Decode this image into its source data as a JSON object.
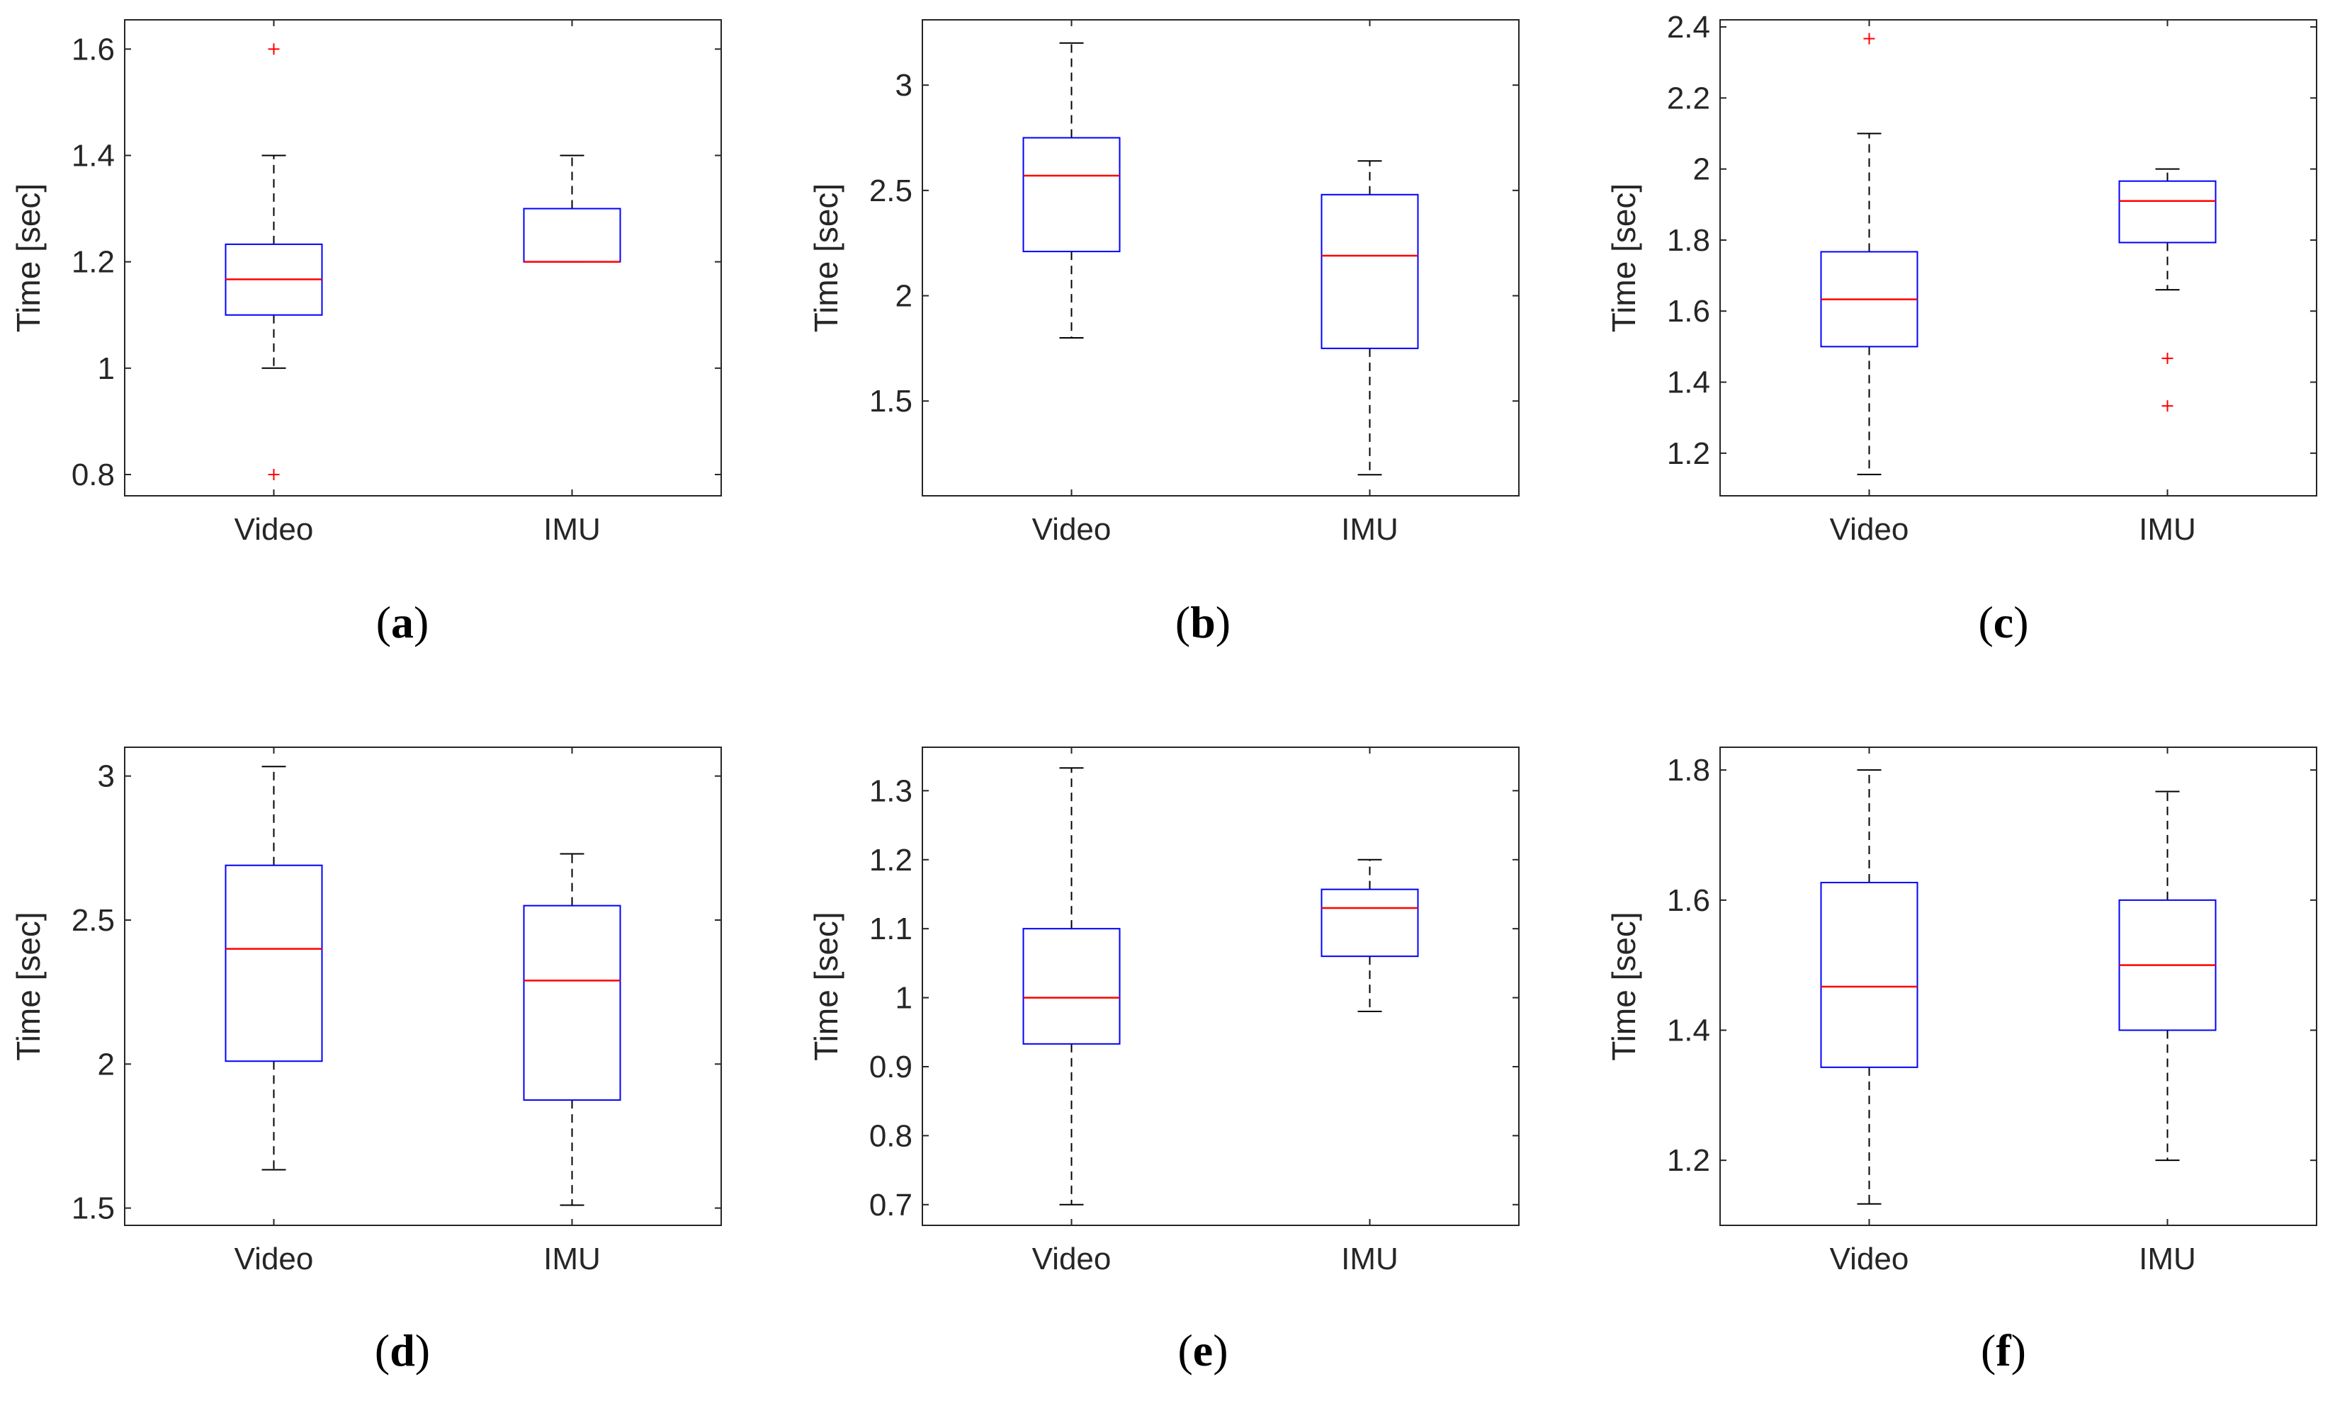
{
  "chart_data": [
    {
      "type": "box",
      "panel_label": "(a)",
      "label_open": "(",
      "label_letter": "a",
      "label_close": ")",
      "ylabel": "Time [sec]",
      "ylim": [
        0.76,
        1.655
      ],
      "yticks": [
        0.8,
        1.0,
        1.2,
        1.4,
        1.6
      ],
      "ytick_labels": [
        "0.8",
        "1",
        "1.2",
        "1.4",
        "1.6"
      ],
      "categories": [
        "Video",
        "IMU"
      ],
      "boxes": [
        {
          "category": "Video",
          "whisker_low": 1.0,
          "q1": 1.1,
          "median": 1.167,
          "q3": 1.233,
          "whisker_high": 1.4,
          "outliers": [
            1.6,
            0.8
          ]
        },
        {
          "category": "IMU",
          "whisker_low": 1.2,
          "q1": 1.2,
          "median": 1.2,
          "q3": 1.3,
          "whisker_high": 1.4,
          "outliers": []
        }
      ]
    },
    {
      "type": "box",
      "panel_label": "(b)",
      "label_open": "(",
      "label_letter": "b",
      "label_close": ")",
      "ylabel": "Time [sec]",
      "ylim": [
        1.05,
        3.31
      ],
      "yticks": [
        1.5,
        2.0,
        2.5,
        3.0
      ],
      "ytick_labels": [
        "1.5",
        "2",
        "2.5",
        "3"
      ],
      "categories": [
        "Video",
        "IMU"
      ],
      "boxes": [
        {
          "category": "Video",
          "whisker_low": 1.8,
          "q1": 2.21,
          "median": 2.57,
          "q3": 2.75,
          "whisker_high": 3.2,
          "outliers": []
        },
        {
          "category": "IMU",
          "whisker_low": 1.15,
          "q1": 1.75,
          "median": 2.19,
          "q3": 2.48,
          "whisker_high": 2.64,
          "outliers": []
        }
      ]
    },
    {
      "type": "box",
      "panel_label": "(c)",
      "label_open": "(",
      "label_letter": "c",
      "label_close": ")",
      "ylabel": "Time [sec]",
      "ylim": [
        1.08,
        2.42
      ],
      "yticks": [
        1.2,
        1.4,
        1.6,
        1.8,
        2.0,
        2.2,
        2.4
      ],
      "ytick_labels": [
        "1.2",
        "1.4",
        "1.6",
        "1.8",
        "2",
        "2.2",
        "2.4"
      ],
      "categories": [
        "Video",
        "IMU"
      ],
      "boxes": [
        {
          "category": "Video",
          "whisker_low": 1.14,
          "q1": 1.5,
          "median": 1.633,
          "q3": 1.767,
          "whisker_high": 2.1,
          "outliers": [
            2.367
          ]
        },
        {
          "category": "IMU",
          "whisker_low": 1.66,
          "q1": 1.793,
          "median": 1.91,
          "q3": 1.966,
          "whisker_high": 2.0,
          "outliers": [
            1.467,
            1.333
          ]
        }
      ]
    },
    {
      "type": "box",
      "panel_label": "(d)",
      "label_open": "(",
      "label_letter": "d",
      "label_close": ")",
      "ylabel": "Time [sec]",
      "ylim": [
        1.44,
        3.1
      ],
      "yticks": [
        1.5,
        2.0,
        2.5,
        3.0
      ],
      "ytick_labels": [
        "1.5",
        "2",
        "2.5",
        "3"
      ],
      "categories": [
        "Video",
        "IMU"
      ],
      "boxes": [
        {
          "category": "Video",
          "whisker_low": 1.633,
          "q1": 2.01,
          "median": 2.4,
          "q3": 2.69,
          "whisker_high": 3.033,
          "outliers": []
        },
        {
          "category": "IMU",
          "whisker_low": 1.51,
          "q1": 1.875,
          "median": 2.29,
          "q3": 2.55,
          "whisker_high": 2.73,
          "outliers": []
        }
      ]
    },
    {
      "type": "box",
      "panel_label": "(e)",
      "label_open": "(",
      "label_letter": "e",
      "label_close": ")",
      "ylabel": "Time [sec]",
      "ylim": [
        0.67,
        1.363
      ],
      "yticks": [
        0.7,
        0.8,
        0.9,
        1.0,
        1.1,
        1.2,
        1.3
      ],
      "ytick_labels": [
        "0.7",
        "0.8",
        "0.9",
        "1",
        "1.1",
        "1.2",
        "1.3"
      ],
      "categories": [
        "Video",
        "IMU"
      ],
      "boxes": [
        {
          "category": "Video",
          "whisker_low": 0.7,
          "q1": 0.933,
          "median": 1.0,
          "q3": 1.1,
          "whisker_high": 1.333,
          "outliers": []
        },
        {
          "category": "IMU",
          "whisker_low": 0.98,
          "q1": 1.06,
          "median": 1.13,
          "q3": 1.157,
          "whisker_high": 1.2,
          "outliers": []
        }
      ]
    },
    {
      "type": "box",
      "panel_label": "(f)",
      "label_open": "(",
      "label_letter": "f",
      "label_close": ")",
      "ylabel": "Time [sec]",
      "ylim": [
        1.1,
        1.835
      ],
      "yticks": [
        1.2,
        1.4,
        1.6,
        1.8
      ],
      "ytick_labels": [
        "1.2",
        "1.4",
        "1.6",
        "1.8"
      ],
      "categories": [
        "Video",
        "IMU"
      ],
      "boxes": [
        {
          "category": "Video",
          "whisker_low": 1.133,
          "q1": 1.343,
          "median": 1.467,
          "q3": 1.627,
          "whisker_high": 1.8,
          "outliers": []
        },
        {
          "category": "IMU",
          "whisker_low": 1.2,
          "q1": 1.4,
          "median": 1.5,
          "q3": 1.6,
          "whisker_high": 1.767,
          "outliers": []
        }
      ]
    }
  ],
  "colors": {
    "box": "#0000ff",
    "median": "#ff0000",
    "outlier": "#ff0000",
    "whisker": "#000000",
    "axes": "#262626"
  }
}
